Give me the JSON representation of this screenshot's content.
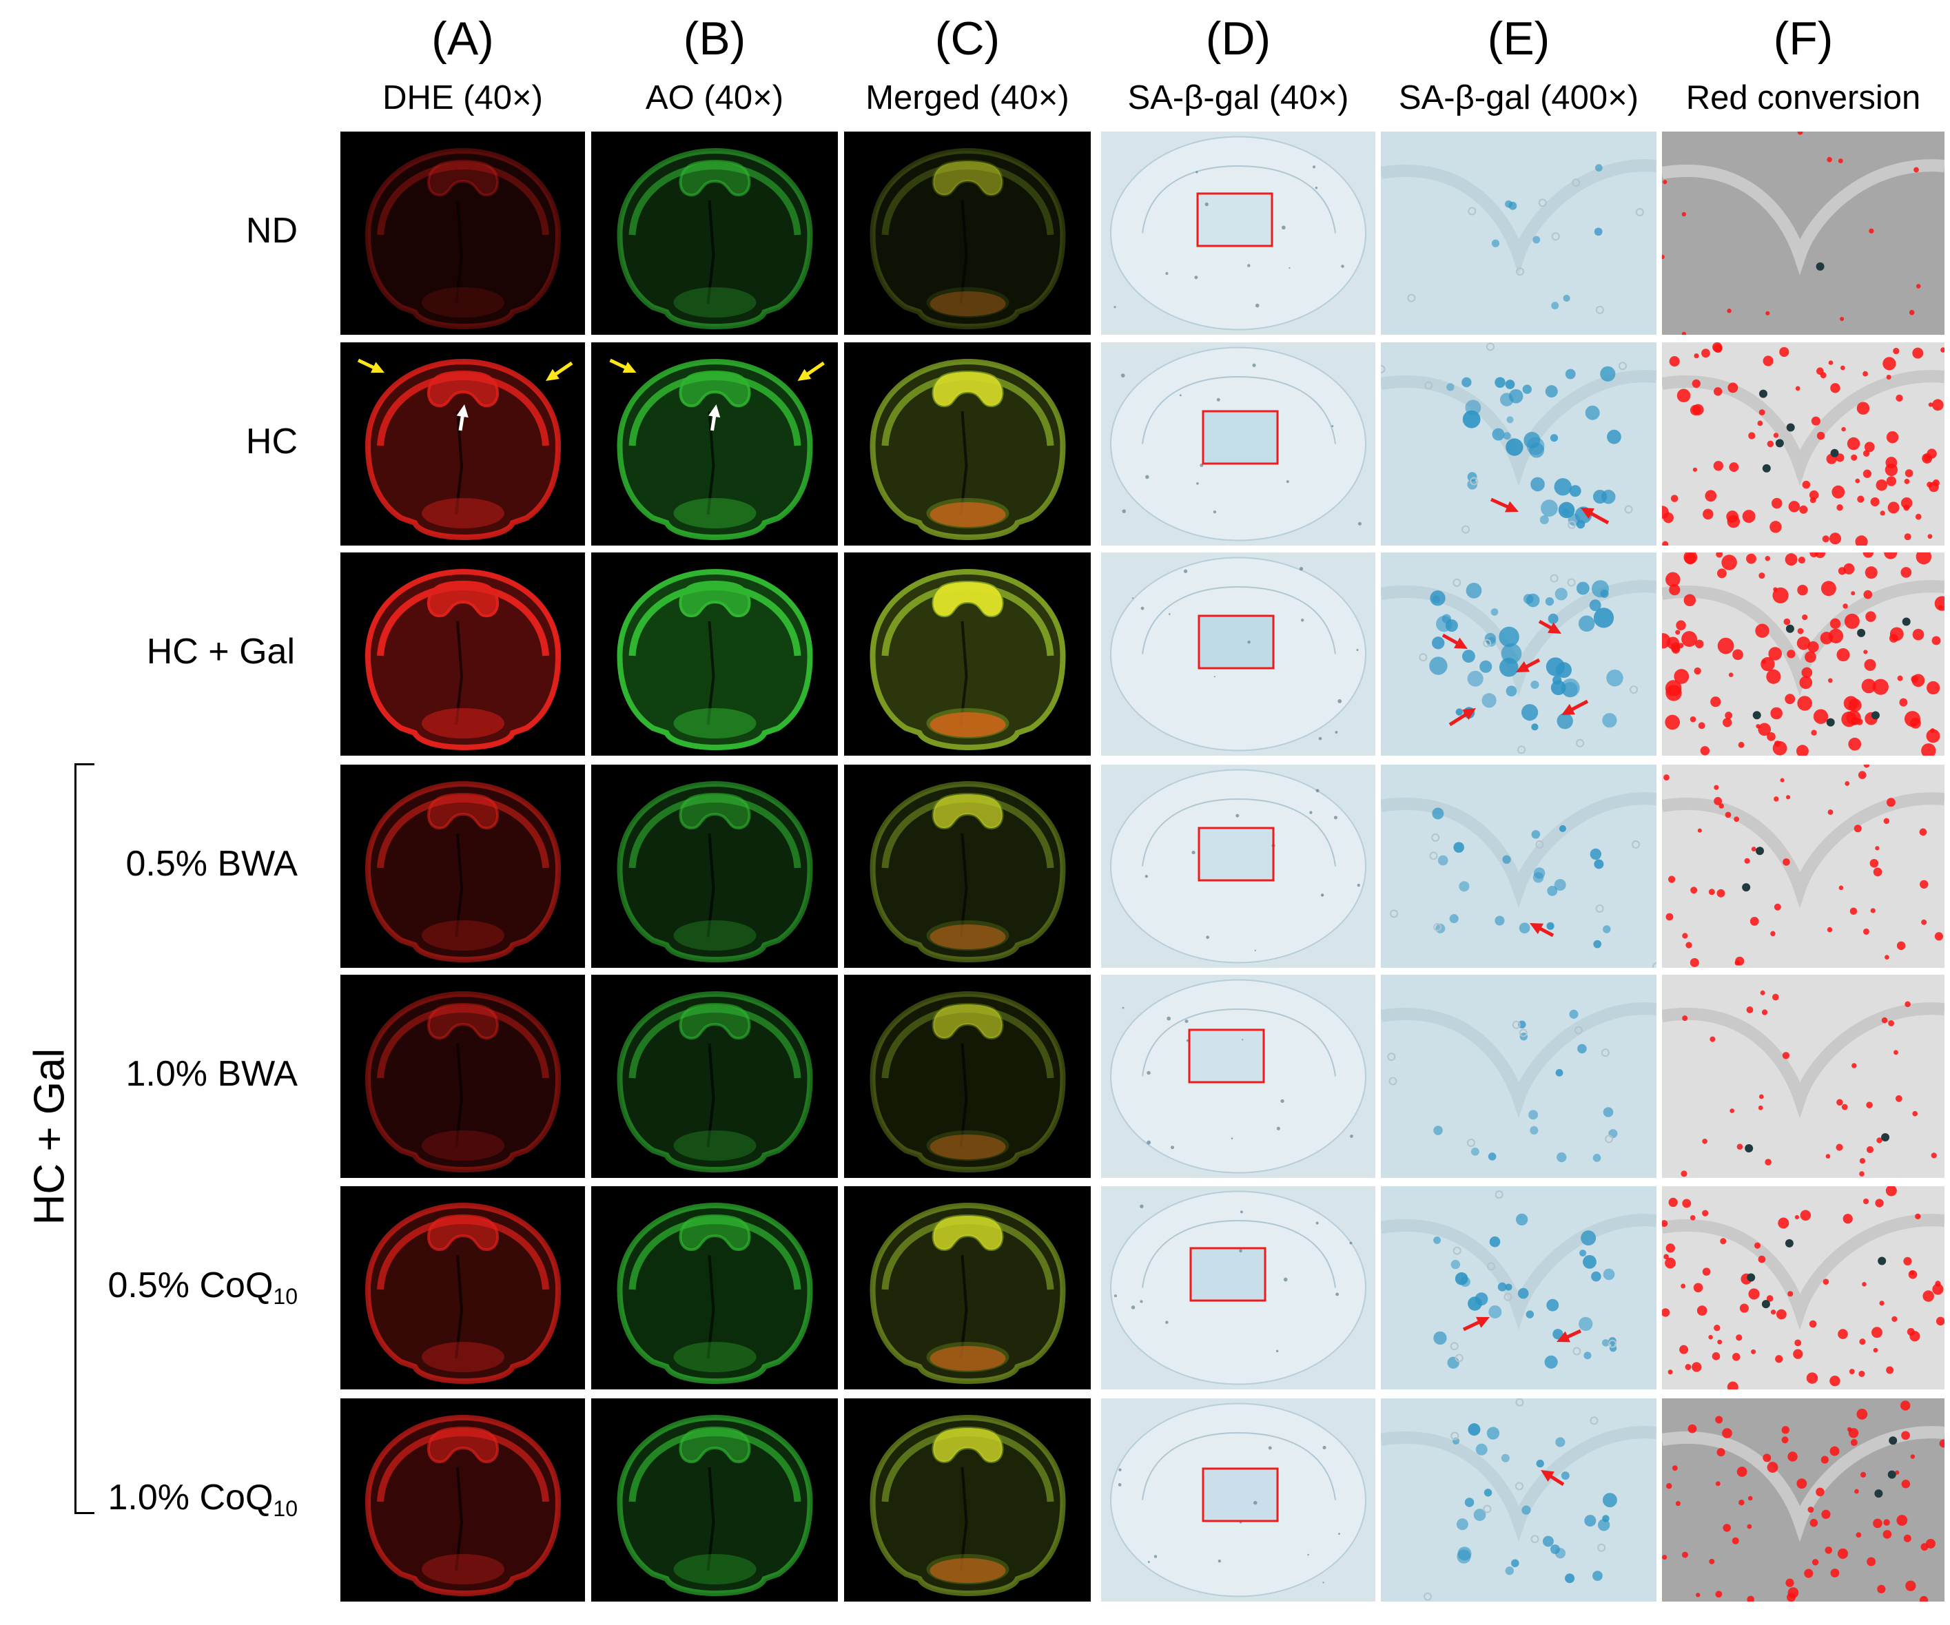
{
  "columns": [
    {
      "letter": "(A)",
      "label": "DHE (40×)",
      "type": "dhe"
    },
    {
      "letter": "(B)",
      "label": "AO (40×)",
      "type": "ao"
    },
    {
      "letter": "(C)",
      "label": "Merged (40×)",
      "type": "merged"
    },
    {
      "letter": "(D)",
      "label": "SA-β-gal (40×)",
      "type": "sabgal40"
    },
    {
      "letter": "(E)",
      "label": "SA-β-gal (400×)",
      "type": "sabgal400"
    },
    {
      "letter": "(F)",
      "label": "Red conversion",
      "type": "red"
    }
  ],
  "rows": [
    {
      "label": "ND",
      "sub": "",
      "intensity": 0.1
    },
    {
      "label": "HC",
      "sub": "",
      "intensity": 0.8
    },
    {
      "label": "HC + Gal",
      "sub": "",
      "intensity": 1.0
    },
    {
      "label": "0.5% BWA",
      "sub": "",
      "intensity": 0.4
    },
    {
      "label": "1.0% BWA",
      "sub": "",
      "intensity": 0.25
    },
    {
      "label": "0.5% CoQ",
      "sub": "10",
      "intensity": 0.6
    },
    {
      "label": "1.0% CoQ",
      "sub": "10",
      "intensity": 0.55
    }
  ],
  "group_label": "HC + Gal",
  "colors": {
    "dhe": "#e0201a",
    "ao": "#2fb52f",
    "merged_core": "#e6e628",
    "stain_blue": "#2e94c4",
    "arrow_red": "#ee1c1c",
    "arrow_yellow": "#ffe619",
    "arrow_white": "#ffffff",
    "roi_box": "#ee1c1c"
  }
}
